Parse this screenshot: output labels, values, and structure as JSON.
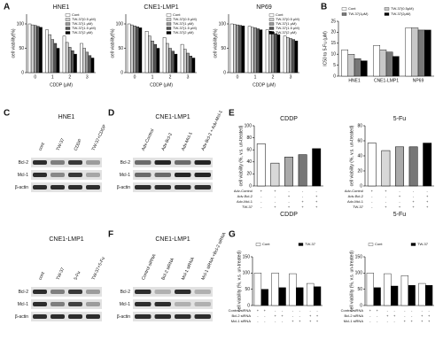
{
  "panel_labels": [
    "A",
    "B",
    "C",
    "D",
    "E",
    "F",
    "G"
  ],
  "chart_data": [
    {
      "type": "bar",
      "title": "HNE1",
      "categories": [
        "0",
        "1",
        "2",
        "3"
      ],
      "xlabel": "CDDP (μM)",
      "ylabel": "cell viability(%)",
      "ylim": [
        0,
        120
      ],
      "yticks": [
        0,
        50,
        100
      ],
      "legend": "upper right",
      "series": [
        {
          "name": "Cont",
          "color": "#ffffff",
          "values": [
            100,
            88,
            75,
            60
          ]
        },
        {
          "name": "TW-37(0.5 μM)",
          "color": "#d0d0d0",
          "values": [
            98,
            78,
            62,
            50
          ]
        },
        {
          "name": "TW-37(1 μM)",
          "color": "#999999",
          "values": [
            97,
            68,
            52,
            42
          ]
        },
        {
          "name": "TW-37(1.5 μM)",
          "color": "#555555",
          "values": [
            95,
            60,
            45,
            35
          ]
        },
        {
          "name": "TW-37(2 μM)",
          "color": "#000000",
          "values": [
            93,
            50,
            38,
            30
          ]
        }
      ]
    },
    {
      "type": "bar",
      "title": "CNE1-LMP1",
      "categories": [
        "0",
        "1",
        "2",
        "3"
      ],
      "xlabel": "CDDP (μM)",
      "ylabel": "cell viability(%)",
      "ylim": [
        0,
        120
      ],
      "yticks": [
        0,
        50,
        100
      ],
      "legend": "upper right",
      "series": [
        {
          "name": "Cont",
          "color": "#ffffff",
          "values": [
            100,
            85,
            72,
            58
          ]
        },
        {
          "name": "TW-37(0.5 μM)",
          "color": "#d0d0d0",
          "values": [
            98,
            75,
            60,
            48
          ]
        },
        {
          "name": "TW-37(1 μM)",
          "color": "#999999",
          "values": [
            96,
            65,
            50,
            40
          ]
        },
        {
          "name": "TW-37(1.5 μM)",
          "color": "#555555",
          "values": [
            94,
            58,
            44,
            34
          ]
        },
        {
          "name": "TW-37(2 μM)",
          "color": "#000000",
          "values": [
            92,
            50,
            38,
            30
          ]
        }
      ]
    },
    {
      "type": "bar",
      "title": "NP69",
      "categories": [
        "0",
        "1",
        "2",
        "3"
      ],
      "xlabel": "CDDP (μM)",
      "ylabel": "cell viability(%)",
      "ylim": [
        0,
        120
      ],
      "yticks": [
        0,
        50,
        100
      ],
      "legend": "upper right",
      "series": [
        {
          "name": "Cont",
          "color": "#ffffff",
          "values": [
            100,
            95,
            88,
            75
          ]
        },
        {
          "name": "TW-37(0.5 μM)",
          "color": "#d0d0d0",
          "values": [
            99,
            93,
            85,
            72
          ]
        },
        {
          "name": "TW-37(1 μM)",
          "color": "#999999",
          "values": [
            98,
            92,
            83,
            70
          ]
        },
        {
          "name": "TW-37(1.5 μM)",
          "color": "#555555",
          "values": [
            97,
            90,
            80,
            68
          ]
        },
        {
          "name": "TW-37(2 μM)",
          "color": "#000000",
          "values": [
            96,
            88,
            78,
            65
          ]
        }
      ]
    },
    {
      "type": "bar",
      "categories": [
        "HNE1",
        "CNE1-LMP1",
        "NP69"
      ],
      "ylabel": "IC50 to 5-Fu (μM)",
      "ylim": [
        0,
        25
      ],
      "yticks": [
        0,
        5,
        10,
        15,
        20,
        25
      ],
      "legend": "top",
      "series": [
        {
          "name": "Cont",
          "color": "#ffffff",
          "values": [
            12,
            14,
            22
          ]
        },
        {
          "name": "TW-37(0.5μM)",
          "color": "#c8c8c8",
          "values": [
            10,
            12,
            22
          ]
        },
        {
          "name": "TW-37(1μM)",
          "color": "#777777",
          "values": [
            8,
            11,
            21
          ]
        },
        {
          "name": "TW-37(2μM)",
          "color": "#000000",
          "values": [
            7,
            9,
            21
          ]
        }
      ]
    },
    {
      "type": "bar",
      "title": "CDDP",
      "categories": [
        null,
        null,
        null,
        null,
        null
      ],
      "xlabel": "CDDP",
      "ylabel": "cell viability (%, v.s. un-treated)",
      "ylim": [
        0,
        100
      ],
      "yticks": [
        0,
        20,
        40,
        60,
        80,
        100
      ],
      "values": [
        70,
        38,
        48,
        52,
        62
      ],
      "colors": [
        "#ffffff",
        "#d8d8d8",
        "#aaaaaa",
        "#777777",
        "#000000"
      ],
      "treatments": [
        {
          "name": "Adv-Control",
          "marks": [
            "+",
            "+",
            "-",
            "-",
            "-"
          ]
        },
        {
          "name": "Adv-Bcl-2",
          "marks": [
            "-",
            "-",
            "+",
            "-",
            "+"
          ]
        },
        {
          "name": "Adv-Mcl-1",
          "marks": [
            "-",
            "-",
            "-",
            "+",
            "+"
          ]
        },
        {
          "name": "TW-37",
          "marks": [
            "-",
            "+",
            "+",
            "+",
            "+"
          ]
        }
      ]
    },
    {
      "type": "bar",
      "title": "5-Fu",
      "categories": [
        null,
        null,
        null,
        null,
        null
      ],
      "xlabel": "5-Fu",
      "ylabel": "cell viability (%, v.s. un-treated)",
      "ylim": [
        0,
        80
      ],
      "yticks": [
        0,
        20,
        40,
        60,
        80
      ],
      "values": [
        57,
        47,
        52,
        52,
        57
      ],
      "colors": [
        "#ffffff",
        "#d8d8d8",
        "#aaaaaa",
        "#777777",
        "#000000"
      ],
      "treatments": [
        {
          "name": "Adv-Control",
          "marks": [
            "+",
            "+",
            "-",
            "-",
            "-"
          ]
        },
        {
          "name": "Adv-Bcl-2",
          "marks": [
            "-",
            "-",
            "+",
            "-",
            "+"
          ]
        },
        {
          "name": "Adv-Mcl-1",
          "marks": [
            "-",
            "-",
            "-",
            "+",
            "+"
          ]
        },
        {
          "name": "TW-37",
          "marks": [
            "-",
            "+",
            "+",
            "+",
            "+"
          ]
        }
      ]
    },
    {
      "type": "bar",
      "categories": [
        null,
        null,
        null,
        null
      ],
      "ylabel": "cell viability (%, v.s. un-treated)",
      "ylim": [
        0,
        150
      ],
      "yticks": [
        0,
        50,
        100,
        150
      ],
      "legend": "top",
      "series": [
        {
          "name": "Cont",
          "color": "#ffffff",
          "values": [
            100,
            100,
            98,
            68
          ]
        },
        {
          "name": "TW-37",
          "color": "#000000",
          "values": [
            50,
            55,
            55,
            58
          ]
        }
      ],
      "treatments": [
        {
          "name": "Control siRNA",
          "marks": [
            "+",
            "+",
            "-",
            "-",
            "-",
            "-",
            "-",
            "-"
          ]
        },
        {
          "name": "Bcl-2 siRNA",
          "marks": [
            "-",
            "-",
            "+",
            "+",
            "-",
            "-",
            "+",
            "+"
          ]
        },
        {
          "name": "Mcl-1 siRNA",
          "marks": [
            "-",
            "-",
            "-",
            "-",
            "+",
            "+",
            "+",
            "+"
          ]
        }
      ]
    },
    {
      "type": "bar",
      "categories": [
        null,
        null,
        null,
        null
      ],
      "ylabel": "cell viability (%, v.s. un-treated)",
      "ylim": [
        0,
        150
      ],
      "yticks": [
        0,
        50,
        100,
        150
      ],
      "legend": "top",
      "series": [
        {
          "name": "Cont",
          "color": "#ffffff",
          "values": [
            100,
            98,
            92,
            68
          ]
        },
        {
          "name": "TW-37",
          "color": "#000000",
          "values": [
            55,
            60,
            62,
            62
          ]
        }
      ],
      "treatments": [
        {
          "name": "Control siRNA",
          "marks": [
            "+",
            "+",
            "-",
            "-",
            "-",
            "-",
            "-",
            "-"
          ]
        },
        {
          "name": "Bcl-2 siRNA",
          "marks": [
            "-",
            "-",
            "+",
            "+",
            "-",
            "-",
            "+",
            "+"
          ]
        },
        {
          "name": "Mcl-1 siRNA",
          "marks": [
            "-",
            "-",
            "-",
            "-",
            "+",
            "+",
            "+",
            "+"
          ]
        }
      ]
    }
  ],
  "blots": [
    {
      "title": "HNE1",
      "lanes": [
        "cont",
        "TW-37",
        "CDDP",
        "TW-37+CDDP"
      ],
      "rows": [
        "Bcl-2",
        "Mcl-1",
        "β-actin"
      ]
    },
    {
      "title": "CNE1-LMP1",
      "lanes": [
        "Adv-Control",
        "Adv-Bcl-2",
        "Adv-Mcl-1",
        "Adv-Bcl-2 + Adv-Mcl-1"
      ],
      "rows": [
        "Bcl-2",
        "Mcl-1",
        "β-actin"
      ]
    },
    {
      "title": "CNE1-LMP1",
      "lanes": [
        "cont",
        "TW-37",
        "5-Fu",
        "TW-37+5-Fu"
      ],
      "rows": [
        "Bcl-2",
        "Mcl-1",
        "β-actin"
      ]
    },
    {
      "title": "CNE1-LMP1",
      "lanes": [
        "Control siRNA",
        "Bcl-2 siRNA",
        "Mcl-1 siRNA",
        "Mcl-1 siRNA +Bcl-2 siRNA"
      ],
      "rows": [
        "Bcl-2",
        "Mcl-1",
        "β-actin"
      ]
    }
  ]
}
